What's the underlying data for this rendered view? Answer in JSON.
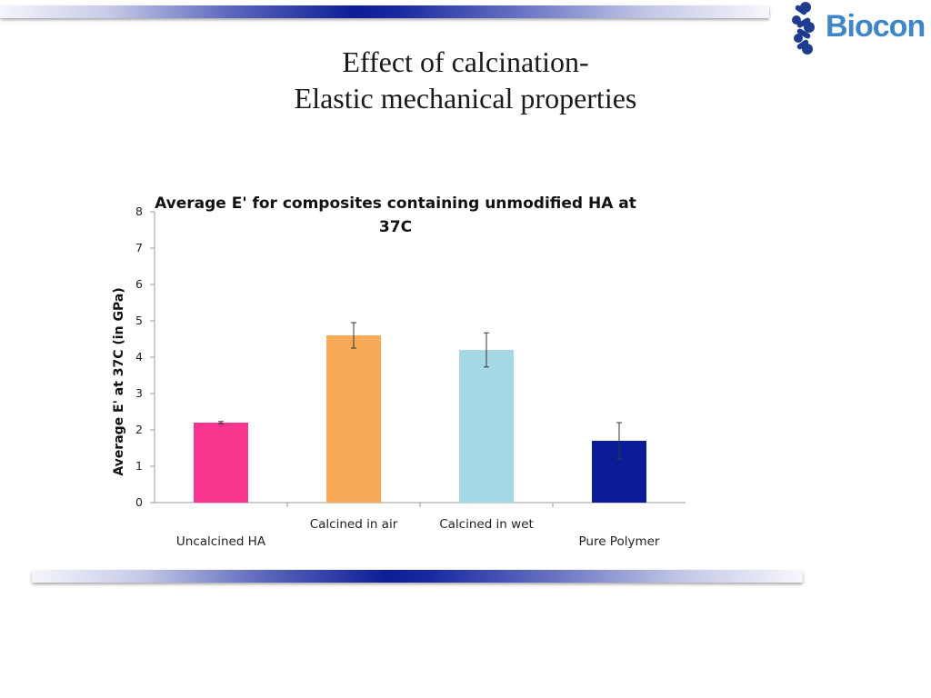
{
  "slide": {
    "title_line1": "Effect of calcination-",
    "title_line2": "Elastic mechanical properties"
  },
  "logo": {
    "text": "Biocon",
    "color": "#3f86c9"
  },
  "colors": {
    "band_dark": "#0d1d96"
  },
  "chart_data": {
    "type": "bar",
    "title_line1": "Average E' for composites containing unmodified HA at",
    "title_line2": "37C",
    "ylabel": "Average E' at 37C (in GPa)",
    "xlabel": "",
    "ylim": [
      0,
      8
    ],
    "yticks": [
      "0",
      "1",
      "2",
      "3",
      "4",
      "5",
      "6",
      "7",
      "8"
    ],
    "categories": [
      "Uncalcined HA",
      "Calcined in air",
      "Calcined in wet",
      "Pure Polymer"
    ],
    "label_rows": [
      "low",
      "high",
      "high",
      "low"
    ],
    "values": [
      2.2,
      4.6,
      4.2,
      1.7
    ],
    "errors": [
      0.03,
      0.35,
      0.47,
      0.5
    ],
    "colors": [
      "#f7358e",
      "#f8aa58",
      "#a6d8e5",
      "#0c1c99"
    ],
    "grid": false,
    "legend": "none"
  }
}
